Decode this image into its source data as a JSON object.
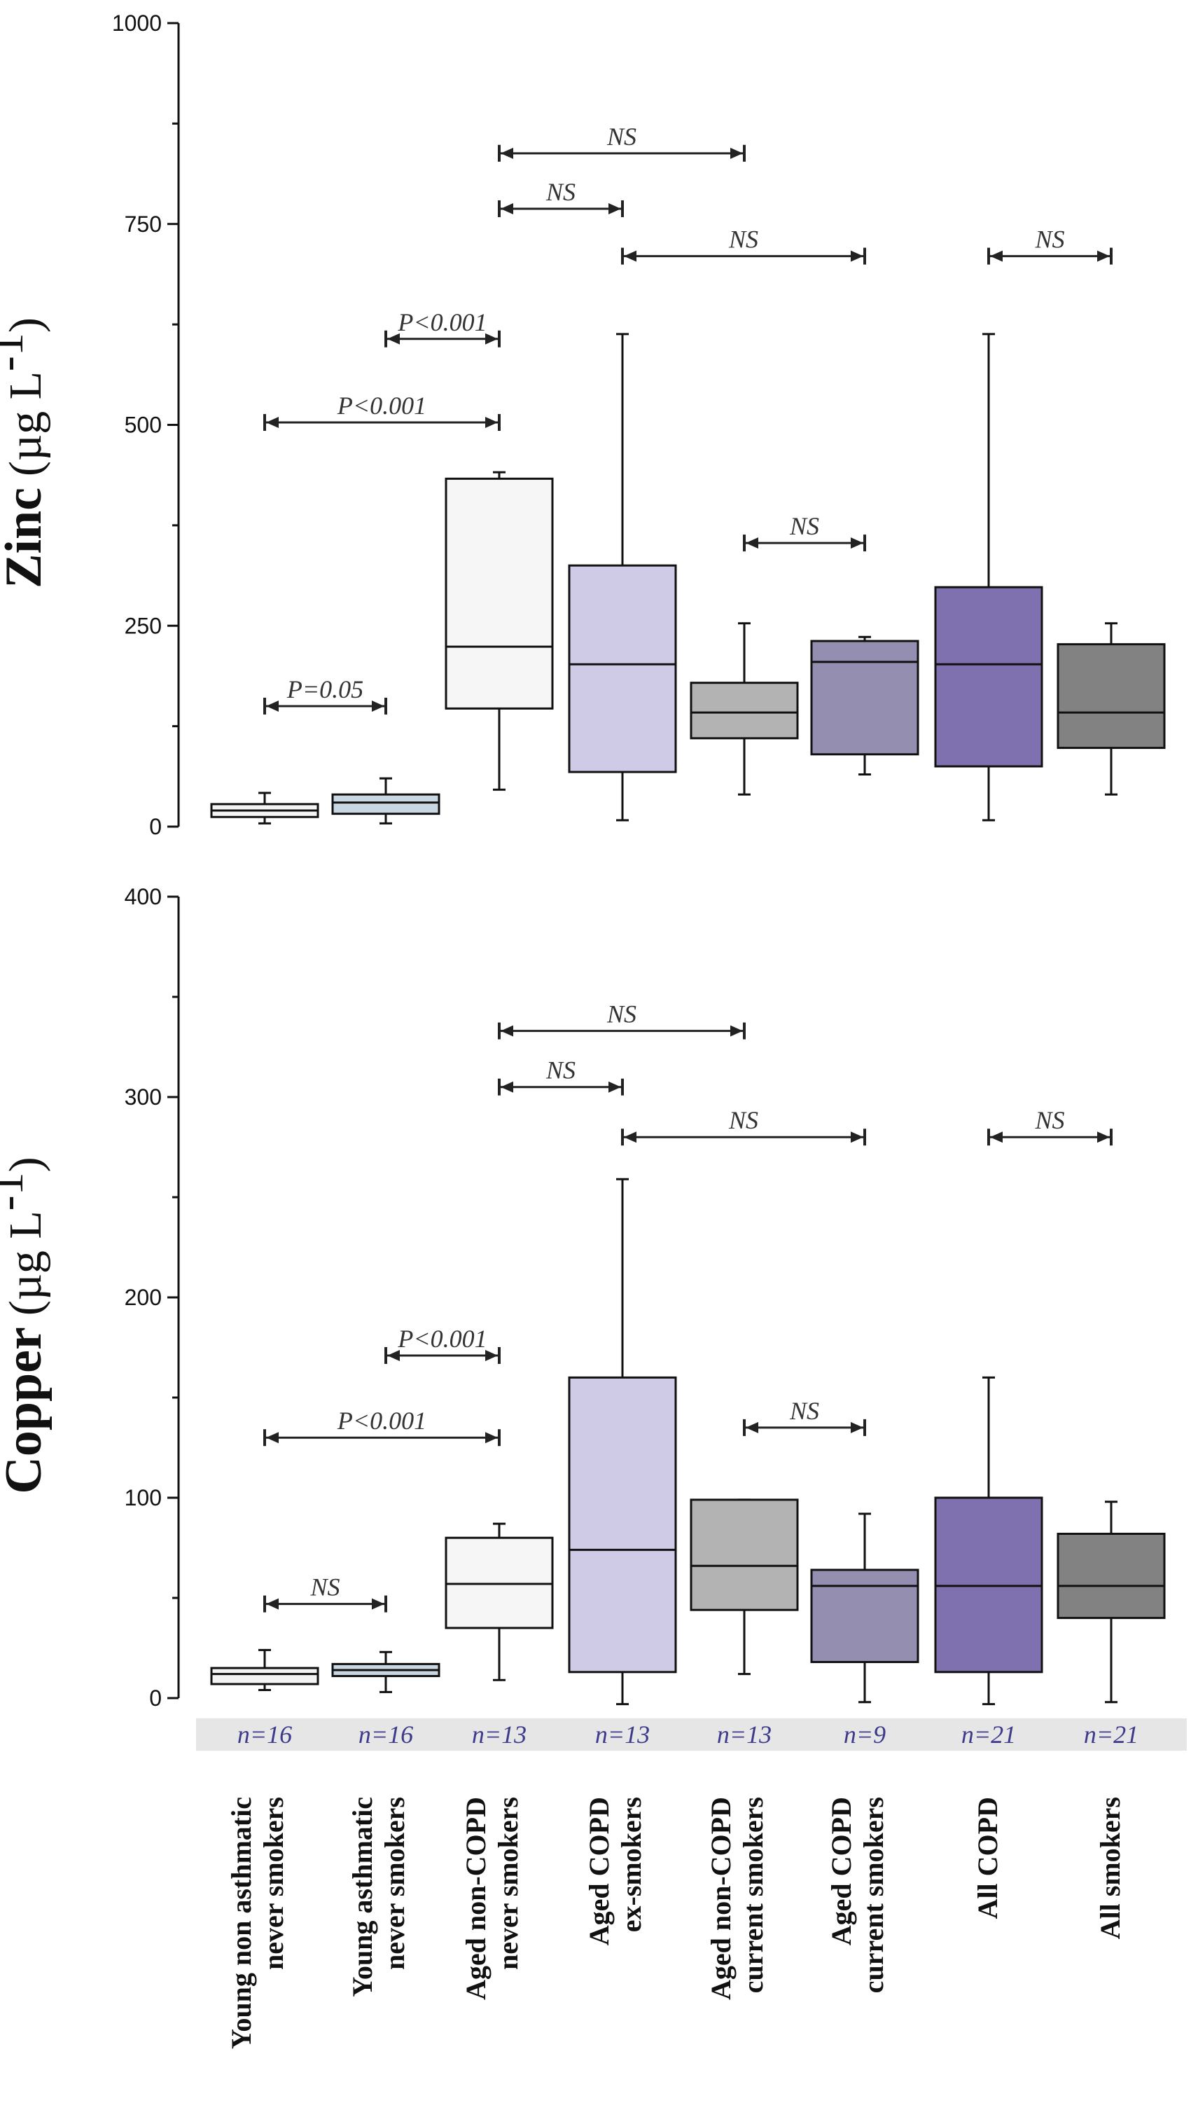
{
  "chart_data": [
    {
      "type": "box",
      "ylabel_bold": "Zinc",
      "ylabel_unit": "(µg L",
      "ylabel_sup": "-1",
      "ylabel_close": ")",
      "ylim": [
        0,
        1000
      ],
      "yticks": [
        0,
        250,
        500,
        750,
        1000
      ],
      "grid": false,
      "boxes": [
        {
          "q1": 12,
          "median": 20,
          "q3": 28,
          "min": 4,
          "max": 42
        },
        {
          "q1": 16,
          "median": 30,
          "q3": 40,
          "min": 4,
          "max": 60
        },
        {
          "q1": 147,
          "median": 224,
          "q3": 433,
          "min": 46,
          "max": 441
        },
        {
          "q1": 68,
          "median": 202,
          "q3": 325,
          "min": 8,
          "max": 613
        },
        {
          "q1": 110,
          "median": 142,
          "q3": 179,
          "min": 40,
          "max": 253
        },
        {
          "q1": 90,
          "median": 205,
          "q3": 231,
          "min": 65,
          "max": 236
        },
        {
          "q1": 75,
          "median": 202,
          "q3": 298,
          "min": 8,
          "max": 613
        },
        {
          "q1": 98,
          "median": 142,
          "q3": 227,
          "min": 40,
          "max": 253
        }
      ],
      "comparisons": [
        {
          "from": 0,
          "to": 1,
          "y": 150,
          "label": "P=0.05"
        },
        {
          "from": 0,
          "to": 2,
          "y": 503,
          "label": "P<0.001"
        },
        {
          "from": 1,
          "to": 2,
          "y": 607,
          "label": "P<0.001"
        },
        {
          "from": 2,
          "to": 3,
          "y": 769,
          "label": "NS"
        },
        {
          "from": 2,
          "to": 4,
          "y": 838,
          "label": "NS"
        },
        {
          "from": 3,
          "to": 5,
          "y": 710,
          "label": "NS"
        },
        {
          "from": 4,
          "to": 5,
          "y": 353,
          "label": "NS"
        },
        {
          "from": 6,
          "to": 7,
          "y": 710,
          "label": "NS"
        }
      ]
    },
    {
      "type": "box",
      "ylabel_bold": "Copper",
      "ylabel_unit": "(µg L",
      "ylabel_sup": "-1",
      "ylabel_close": ")",
      "ylim": [
        0,
        400
      ],
      "yticks": [
        0,
        100,
        200,
        300,
        400
      ],
      "grid": false,
      "boxes": [
        {
          "q1": 7,
          "median": 12,
          "q3": 15,
          "min": 4,
          "max": 24
        },
        {
          "q1": 11,
          "median": 14,
          "q3": 17,
          "min": 3,
          "max": 23
        },
        {
          "q1": 35,
          "median": 57,
          "q3": 80,
          "min": 9,
          "max": 87
        },
        {
          "q1": 13,
          "median": 74,
          "q3": 160,
          "min": -3,
          "max": 259
        },
        {
          "q1": 44,
          "median": 66,
          "q3": 99,
          "min": 12,
          "max": 99
        },
        {
          "q1": 18,
          "median": 56,
          "q3": 64,
          "min": -2,
          "max": 92
        },
        {
          "q1": 13,
          "median": 56,
          "q3": 100,
          "min": -3,
          "max": 160
        },
        {
          "q1": 40,
          "median": 56,
          "q3": 82,
          "min": -2,
          "max": 98
        }
      ],
      "comparisons": [
        {
          "from": 0,
          "to": 1,
          "y": 47,
          "label": "NS"
        },
        {
          "from": 0,
          "to": 2,
          "y": 130,
          "label": "P<0.001"
        },
        {
          "from": 1,
          "to": 2,
          "y": 171,
          "label": "P<0.001"
        },
        {
          "from": 2,
          "to": 3,
          "y": 305,
          "label": "NS"
        },
        {
          "from": 2,
          "to": 4,
          "y": 333,
          "label": "NS"
        },
        {
          "from": 3,
          "to": 5,
          "y": 280,
          "label": "NS"
        },
        {
          "from": 4,
          "to": 5,
          "y": 135,
          "label": "NS"
        },
        {
          "from": 6,
          "to": 7,
          "y": 280,
          "label": "NS"
        }
      ]
    }
  ],
  "groups": [
    {
      "label_line1": "Young non asthmatic",
      "label_line2": "never smokers",
      "n": "n=16",
      "fill": "#f4f4f4"
    },
    {
      "label_line1": "Young asthmatic",
      "label_line2": "never smokers",
      "n": "n=16",
      "fill": "#c9d7e3"
    },
    {
      "label_line1": "Aged non-COPD",
      "label_line2": "never smokers",
      "n": "n=13",
      "fill": "#f6f6f6"
    },
    {
      "label_line1": "Aged COPD",
      "label_line2": "ex-smokers",
      "n": "n=13",
      "fill": "#cfcbe6"
    },
    {
      "label_line1": "Aged non-COPD",
      "label_line2": "current smokers",
      "n": "n=13",
      "fill": "#b3b3b3"
    },
    {
      "label_line1": "Aged COPD",
      "label_line2": "current smokers",
      "n": "n=9",
      "fill": "#948fb0"
    },
    {
      "label_line1": "All COPD",
      "label_line2": "",
      "n": "n=21",
      "fill": "#7f71b0"
    },
    {
      "label_line1": "All smokers",
      "label_line2": "",
      "n": "n=21",
      "fill": "#828282"
    }
  ],
  "colors": {
    "axis": "#111111",
    "n_band": "#e6e6e6",
    "n_text": "#3d3a8c"
  }
}
